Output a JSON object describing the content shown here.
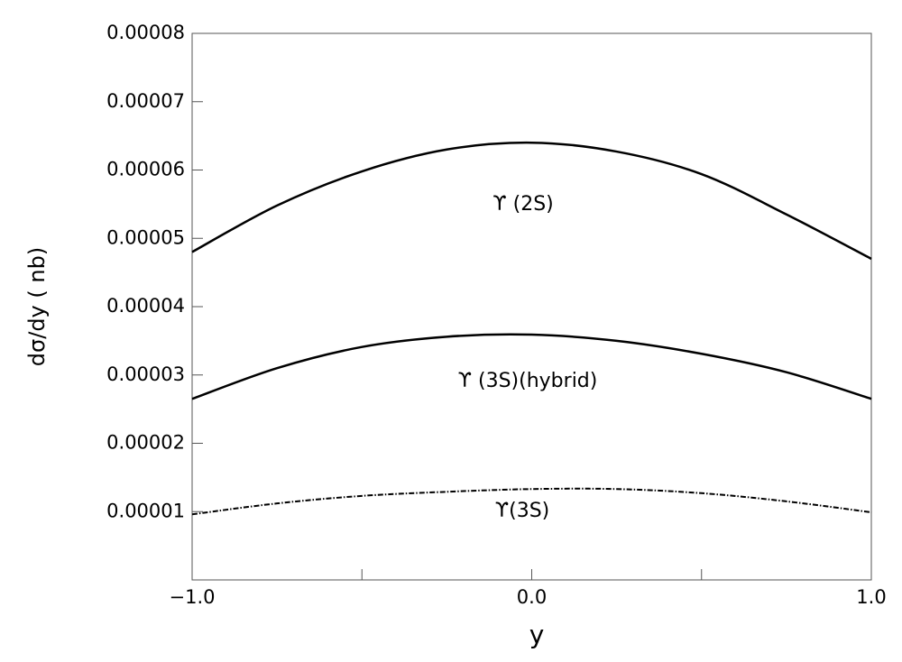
{
  "chart_data": {
    "type": "line",
    "x_label": "y",
    "y_label": "dσ/dy ( nb)",
    "x": [
      -1,
      -0.75,
      -0.5,
      -0.25,
      0,
      0.25,
      0.5,
      0.75,
      1
    ],
    "series": [
      {
        "name": "ϒ (2S)",
        "color": "#000000",
        "dash": "solid",
        "values": [
          4.8e-05,
          5.48e-05,
          5.98e-05,
          6.3e-05,
          6.4e-05,
          6.27e-05,
          5.94e-05,
          5.35e-05,
          4.7e-05
        ]
      },
      {
        "name": "ϒ (3S)(hybrid)",
        "color": "#000000",
        "dash": "solid",
        "values": [
          2.65e-05,
          3.1e-05,
          3.41e-05,
          3.56e-05,
          3.59e-05,
          3.5e-05,
          3.31e-05,
          3.04e-05,
          2.65e-05
        ]
      },
      {
        "name": "ϒ(3S)",
        "color": "#000000",
        "dash": "dashdot",
        "values": [
          9.6e-06,
          1.12e-05,
          1.23e-05,
          1.29e-05,
          1.33e-05,
          1.33e-05,
          1.27e-05,
          1.15e-05,
          9.9e-06
        ]
      }
    ],
    "xlim": [
      -1,
      1
    ],
    "xticks": [
      {
        "value": -1,
        "label": "−1.0"
      },
      {
        "value": 0,
        "label": "0.0"
      },
      {
        "value": 1,
        "label": "1.0"
      }
    ],
    "xminor_ticks": [
      -0.5,
      0.5
    ],
    "ylim": [
      0,
      8e-05
    ],
    "yticks": [
      1e-05,
      2e-05,
      3e-05,
      4e-05,
      5e-05,
      6e-05,
      7e-05,
      8e-05
    ],
    "grid": false
  }
}
